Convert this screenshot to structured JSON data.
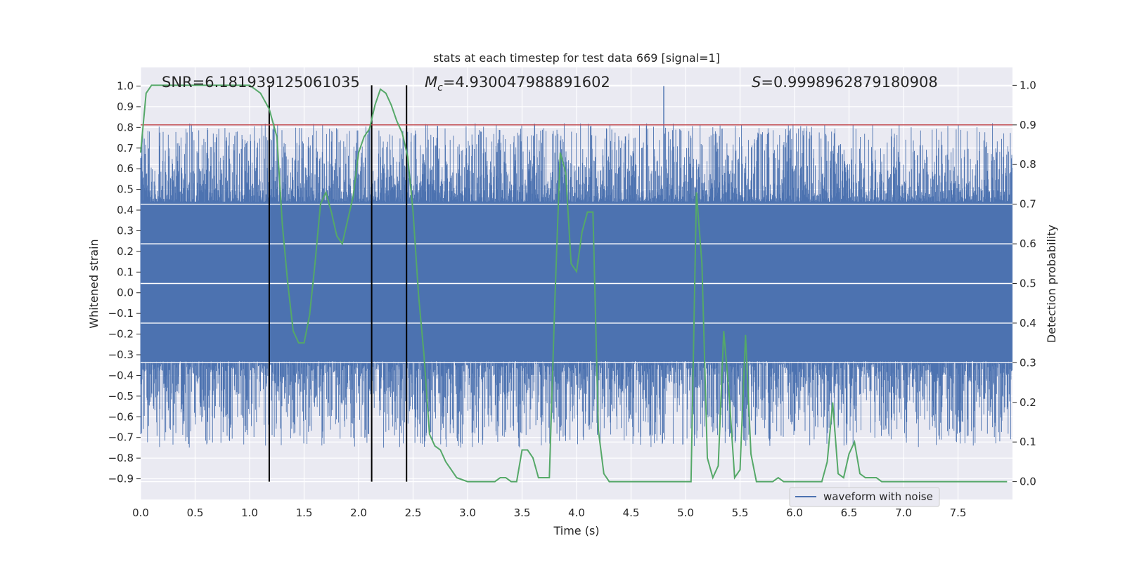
{
  "chart_data": {
    "type": "line",
    "title": "stats at each timestep for test data 669 [signal=1]",
    "xlabel": "Time (s)",
    "ylabel_left": "Whitened strain",
    "ylabel_right": "Detection probability",
    "xlim": [
      0.0,
      8.0
    ],
    "ylim_left": [
      -1.0,
      1.09
    ],
    "ylim_right": [
      -0.045,
      1.045
    ],
    "x_ticks": [
      "0.0",
      "0.5",
      "1.0",
      "1.5",
      "2.0",
      "2.5",
      "3.0",
      "3.5",
      "4.0",
      "4.5",
      "5.0",
      "5.5",
      "6.0",
      "6.5",
      "7.0",
      "7.5"
    ],
    "y_left_ticks": [
      "−0.9",
      "−0.8",
      "−0.7",
      "−0.6",
      "−0.5",
      "−0.4",
      "−0.3",
      "−0.2",
      "−0.1",
      "0.0",
      "0.1",
      "0.2",
      "0.3",
      "0.4",
      "0.5",
      "0.6",
      "0.7",
      "0.8",
      "0.9",
      "1.0"
    ],
    "y_right_ticks": [
      "0.0",
      "0.1",
      "0.2",
      "0.3",
      "0.4",
      "0.5",
      "0.6",
      "0.7",
      "0.8",
      "0.9",
      "1.0"
    ],
    "grid": true,
    "legend_position": "lower-center-right",
    "annotations": {
      "snr": "SNR=6.181939125061035",
      "mc_symbol": "M",
      "mc_sub": "c",
      "mc_value": "=4.930047988891602",
      "s_symbol": "S",
      "s_value": "=0.9998962879180908"
    },
    "threshold_right": 0.9,
    "vertical_markers": [
      1.18,
      2.12,
      2.44
    ],
    "series": [
      {
        "name": "waveform with noise",
        "axis": "left",
        "color": "#4c72b0",
        "summary": {
          "dense_band": [
            -0.33,
            0.44
          ],
          "max": 1.0,
          "min": -0.88,
          "samples": 16384
        }
      },
      {
        "axis": "right",
        "color": "#55a868",
        "x": [
          0.0,
          0.05,
          0.1,
          0.2,
          0.3,
          0.4,
          0.5,
          0.6,
          0.7,
          0.8,
          0.9,
          1.0,
          1.05,
          1.1,
          1.18,
          1.25,
          1.3,
          1.35,
          1.4,
          1.45,
          1.5,
          1.55,
          1.6,
          1.65,
          1.7,
          1.75,
          1.8,
          1.85,
          1.9,
          1.95,
          2.0,
          2.05,
          2.1,
          2.15,
          2.2,
          2.25,
          2.3,
          2.35,
          2.4,
          2.45,
          2.5,
          2.55,
          2.6,
          2.65,
          2.7,
          2.75,
          2.8,
          2.85,
          2.9,
          3.0,
          3.1,
          3.2,
          3.25,
          3.3,
          3.35,
          3.4,
          3.45,
          3.5,
          3.55,
          3.6,
          3.65,
          3.7,
          3.75,
          3.8,
          3.85,
          3.9,
          3.95,
          4.0,
          4.05,
          4.1,
          4.15,
          4.2,
          4.25,
          4.3,
          4.35,
          4.4,
          4.5,
          4.6,
          4.7,
          4.8,
          4.9,
          5.0,
          5.05,
          5.1,
          5.15,
          5.2,
          5.25,
          5.3,
          5.35,
          5.4,
          5.45,
          5.5,
          5.55,
          5.6,
          5.65,
          5.7,
          5.75,
          5.8,
          5.85,
          5.9,
          6.0,
          6.1,
          6.2,
          6.25,
          6.3,
          6.35,
          6.4,
          6.45,
          6.5,
          6.55,
          6.6,
          6.65,
          6.7,
          6.75,
          6.8,
          6.9,
          7.0,
          7.2,
          7.4,
          7.6,
          7.8,
          7.95
        ],
        "y": [
          0.83,
          0.98,
          1.0,
          1.0,
          1.0,
          1.0,
          1.0,
          1.0,
          1.0,
          1.0,
          1.0,
          1.0,
          0.99,
          0.98,
          0.94,
          0.87,
          0.65,
          0.5,
          0.38,
          0.35,
          0.35,
          0.42,
          0.55,
          0.7,
          0.73,
          0.68,
          0.62,
          0.6,
          0.66,
          0.72,
          0.83,
          0.87,
          0.89,
          0.95,
          0.99,
          0.98,
          0.95,
          0.91,
          0.88,
          0.82,
          0.68,
          0.47,
          0.32,
          0.12,
          0.09,
          0.08,
          0.05,
          0.03,
          0.01,
          0.0,
          0.0,
          0.0,
          0.0,
          0.01,
          0.01,
          0.0,
          0.0,
          0.08,
          0.08,
          0.06,
          0.01,
          0.01,
          0.01,
          0.45,
          0.83,
          0.78,
          0.55,
          0.53,
          0.63,
          0.68,
          0.68,
          0.13,
          0.02,
          0.0,
          0.0,
          0.0,
          0.0,
          0.0,
          0.0,
          0.0,
          0.0,
          0.0,
          0.0,
          0.73,
          0.55,
          0.06,
          0.01,
          0.04,
          0.38,
          0.22,
          0.01,
          0.03,
          0.37,
          0.07,
          0.0,
          0.0,
          0.0,
          0.0,
          0.01,
          0.0,
          0.0,
          0.0,
          0.0,
          0.0,
          0.05,
          0.2,
          0.02,
          0.01,
          0.07,
          0.1,
          0.02,
          0.01,
          0.01,
          0.01,
          0.0,
          0.0,
          0.0,
          0.0,
          0.0,
          0.0,
          0.0,
          0.0
        ]
      }
    ]
  }
}
